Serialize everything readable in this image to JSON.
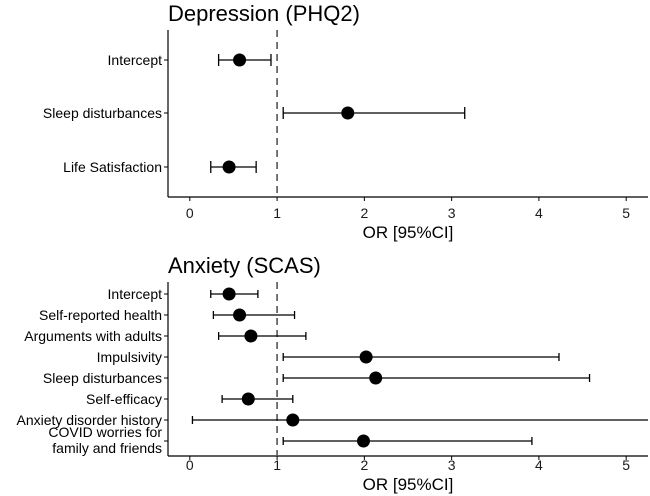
{
  "chart_data": [
    {
      "type": "forest",
      "title": "Depression (PHQ2)",
      "xlabel": "OR [95%CI]",
      "xlim": [
        -0.25,
        5.25
      ],
      "xticks": [
        0,
        1,
        2,
        3,
        4,
        5
      ],
      "reference_line": 1,
      "rows": [
        {
          "label": "Intercept",
          "label_lines": [
            "Intercept"
          ],
          "or": 0.57,
          "lo": 0.33,
          "hi": 0.93
        },
        {
          "label": "Sleep disturbances",
          "label_lines": [
            "Sleep disturbances"
          ],
          "or": 1.81,
          "lo": 1.07,
          "hi": 3.15
        },
        {
          "label": "Life Satisfaction",
          "label_lines": [
            "Life Satisfaction"
          ],
          "or": 0.45,
          "lo": 0.24,
          "hi": 0.76
        }
      ]
    },
    {
      "type": "forest",
      "title": "Anxiety (SCAS)",
      "xlabel": "OR [95%CI]",
      "xlim": [
        -0.25,
        5.25
      ],
      "xticks": [
        0,
        1,
        2,
        3,
        4,
        5
      ],
      "reference_line": 1,
      "rows": [
        {
          "label": "Intercept",
          "label_lines": [
            "Intercept"
          ],
          "or": 0.45,
          "lo": 0.24,
          "hi": 0.78
        },
        {
          "label": "Self-reported health",
          "label_lines": [
            "Self-reported health"
          ],
          "or": 0.57,
          "lo": 0.27,
          "hi": 1.2
        },
        {
          "label": "Arguments with adults",
          "label_lines": [
            "Arguments with adults"
          ],
          "or": 0.7,
          "lo": 0.33,
          "hi": 1.33
        },
        {
          "label": "Impulsivity",
          "label_lines": [
            "Impulsivity"
          ],
          "or": 2.02,
          "lo": 1.07,
          "hi": 4.23
        },
        {
          "label": "Sleep disturbances",
          "label_lines": [
            "Sleep disturbances"
          ],
          "or": 2.13,
          "lo": 1.07,
          "hi": 4.58
        },
        {
          "label": "Self-efficacy",
          "label_lines": [
            "Self-efficacy"
          ],
          "or": 0.67,
          "lo": 0.37,
          "hi": 1.18
        },
        {
          "label": "Anxiety disorder history",
          "label_lines": [
            "Anxiety disorder history"
          ],
          "or": 1.18,
          "lo": 0.03,
          "hi": 5.3
        },
        {
          "label": "COVID worries for family and friends",
          "label_lines": [
            "COVID worries for",
            "family and friends"
          ],
          "or": 1.99,
          "lo": 1.07,
          "hi": 3.92
        }
      ]
    }
  ]
}
